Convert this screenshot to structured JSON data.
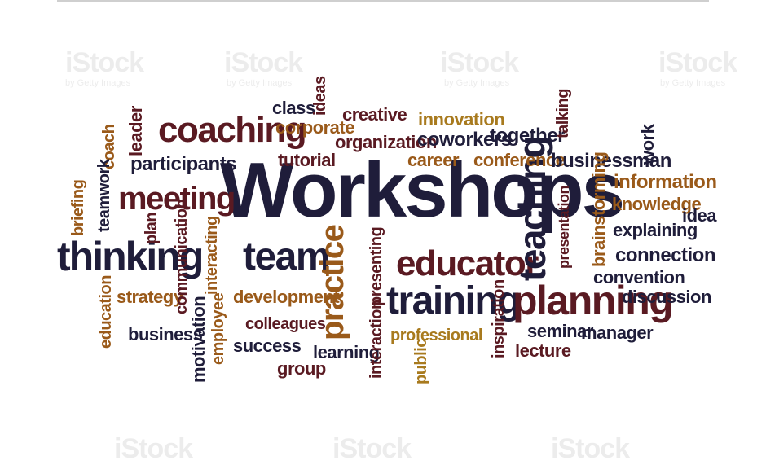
{
  "colors": {
    "navy": "#1f1d3a",
    "maroon": "#5a1a22",
    "brown": "#9a5a1a",
    "gold": "#a87a1e"
  },
  "watermark": {
    "brand": "iStock",
    "byline": "by Getty Images"
  },
  "words": {
    "workshops": "Workshops",
    "coaching": "coaching",
    "thinking": "thinking",
    "meeting": "meeting",
    "team": "team",
    "educator": "educator",
    "training": "training",
    "planning": "planning",
    "teaching": "teaching",
    "practice": "practice",
    "class": "class",
    "ideas": "ideas",
    "corporate": "corporate",
    "creative": "creative",
    "innovation": "innovation",
    "talking": "talking",
    "organization": "organization",
    "coworkers": "coworkers",
    "together": "together",
    "work": "work",
    "leader": "leader",
    "coach": "coach",
    "participants": "participants",
    "tutorial": "tutorial",
    "career": "career",
    "conference": "conference",
    "businessman": "businessman",
    "information": "information",
    "teamwork": "teamwork",
    "knowledge": "knowledge",
    "idea": "idea",
    "briefing": "briefing",
    "plan": "plan",
    "explaining": "explaining",
    "presentation": "presentation",
    "brainstorming": "brainstorming",
    "communication": "communication",
    "interacting": "interacting",
    "presenting": "presenting",
    "connection": "connection",
    "convention": "convention",
    "education": "education",
    "strategy": "strategy",
    "development": "development",
    "discussion": "discussion",
    "motivation": "motivation",
    "employee": "employee",
    "colleagues": "colleagues",
    "interaction": "interaction",
    "inspiration": "inspiration",
    "business": "business",
    "professional": "professional",
    "seminar": "seminar",
    "manager": "manager",
    "success": "success",
    "learning": "learning",
    "public": "public",
    "lecture": "lecture",
    "group": "group"
  }
}
